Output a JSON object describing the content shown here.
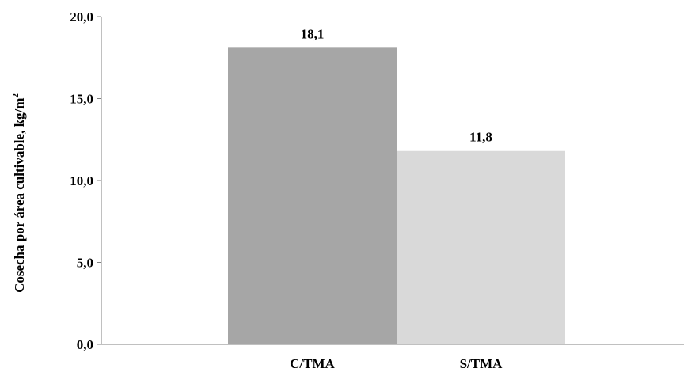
{
  "chart_data": {
    "type": "bar",
    "categories": [
      "C/TMA",
      "S/TMA"
    ],
    "values": [
      18.1,
      11.8
    ],
    "data_labels": [
      "18,1",
      "11,8"
    ],
    "title": "",
    "xlabel": "",
    "ylabel": "Cosecha por área cultivable, kg/m",
    "ylabel_superscript": "2",
    "ylim": [
      0,
      20
    ],
    "yticks": [
      0,
      5,
      10,
      15,
      20
    ],
    "ytick_labels": [
      "0,0",
      "5,0",
      "10,0",
      "15,0",
      "20,0"
    ],
    "bar_colors": [
      "#a6a6a6",
      "#d9d9d9"
    ],
    "grid": false,
    "legend": "none"
  }
}
